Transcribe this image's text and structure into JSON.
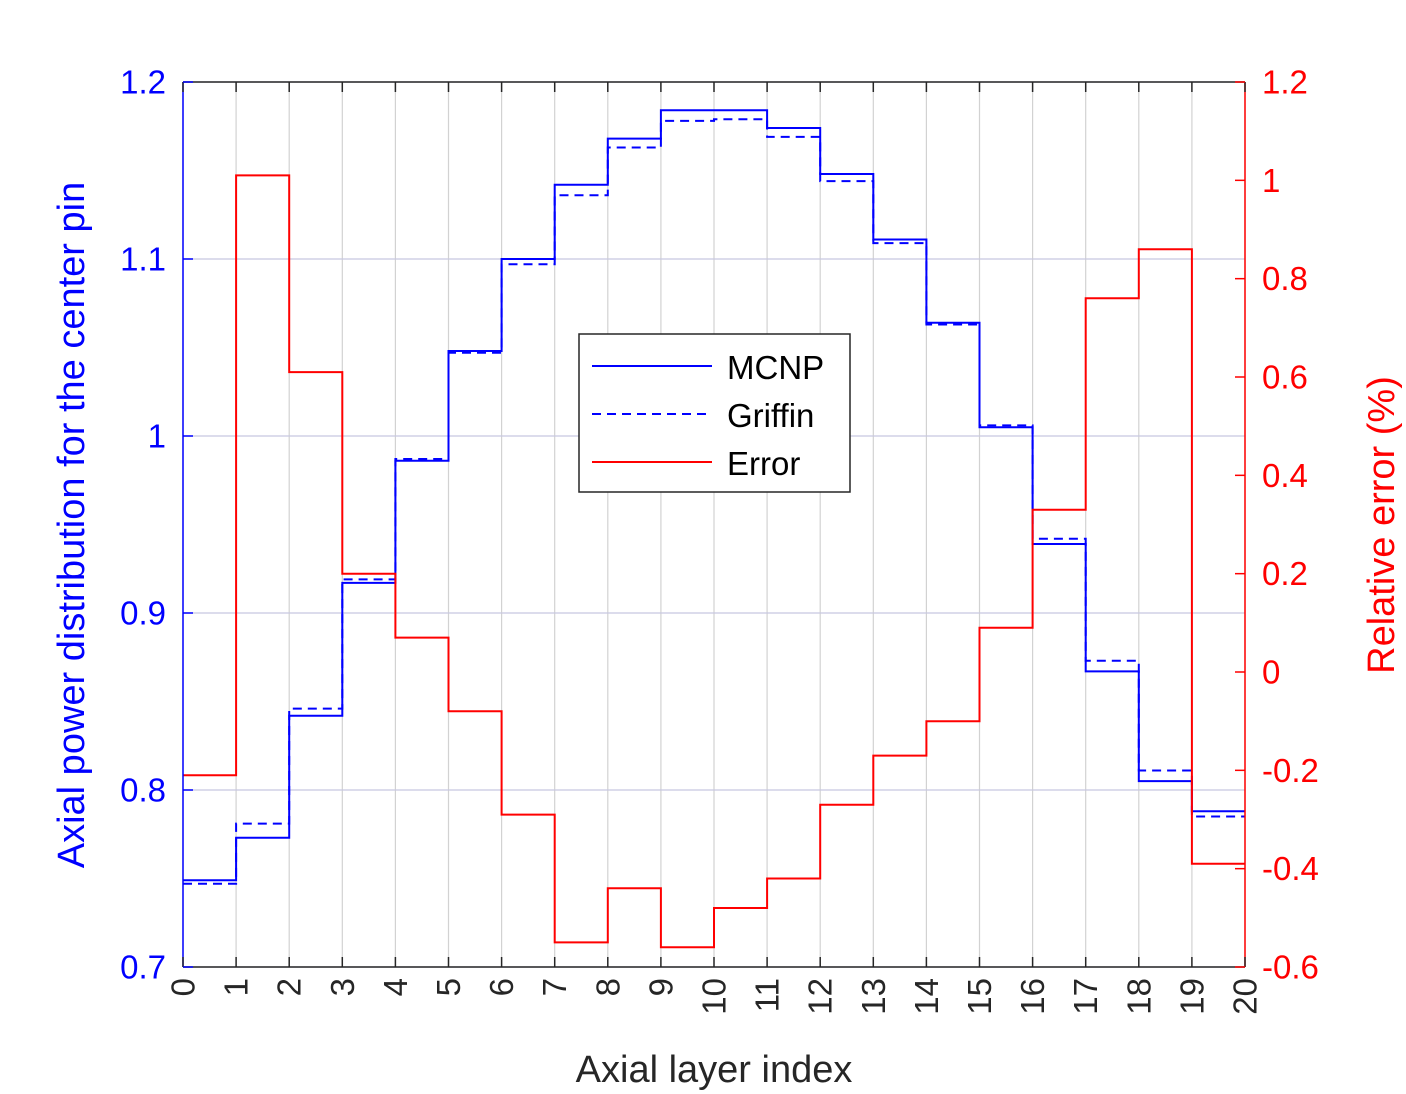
{
  "chart_data": {
    "type": "line",
    "xlabel": "Axial layer index",
    "ylabel_left": "Axial power distribution for the center pin",
    "ylabel_right": "Relative error (%)",
    "xlim": [
      0,
      20
    ],
    "ylim_left": [
      0.7,
      1.2
    ],
    "ylim_right": [
      -0.6,
      1.2
    ],
    "x_ticks": [
      "0",
      "1",
      "2",
      "3",
      "4",
      "5",
      "6",
      "7",
      "8",
      "9",
      "10",
      "11",
      "12",
      "13",
      "14",
      "15",
      "16",
      "17",
      "18",
      "19",
      "20"
    ],
    "y_ticks_left": [
      "0.7",
      "0.8",
      "0.9",
      "1",
      "1.1",
      "1.2"
    ],
    "y_ticks_right": [
      "-0.6",
      "-0.4",
      "-0.2",
      "0",
      "0.2",
      "0.4",
      "0.6",
      "0.8",
      "1",
      "1.2"
    ],
    "grid": true,
    "legend": "center",
    "colors": {
      "left_axis": "#0000ff",
      "right_axis": "#ff0000",
      "axis": "#262626",
      "grid": "#c8c8e0"
    },
    "series": [
      {
        "name": "MCNP",
        "axis": "left",
        "style": "solid",
        "color": "#0000ff",
        "values": [
          0.749,
          0.773,
          0.842,
          0.917,
          0.986,
          1.048,
          1.1,
          1.142,
          1.168,
          1.184,
          1.184,
          1.174,
          1.148,
          1.111,
          1.064,
          1.005,
          0.939,
          0.867,
          0.805,
          0.788
        ]
      },
      {
        "name": "Griffin",
        "axis": "left",
        "style": "dashed",
        "color": "#0000ff",
        "values": [
          0.747,
          0.781,
          0.846,
          0.919,
          0.987,
          1.047,
          1.097,
          1.136,
          1.163,
          1.178,
          1.179,
          1.169,
          1.144,
          1.109,
          1.063,
          1.006,
          0.942,
          0.873,
          0.811,
          0.785
        ]
      },
      {
        "name": "Error",
        "axis": "right",
        "style": "solid",
        "color": "#ff0000",
        "values": [
          -0.21,
          1.01,
          0.61,
          0.2,
          0.07,
          -0.08,
          -0.29,
          -0.55,
          -0.44,
          -0.56,
          -0.48,
          -0.42,
          -0.27,
          -0.17,
          -0.1,
          0.09,
          0.33,
          0.76,
          0.86,
          -0.39
        ]
      }
    ]
  }
}
